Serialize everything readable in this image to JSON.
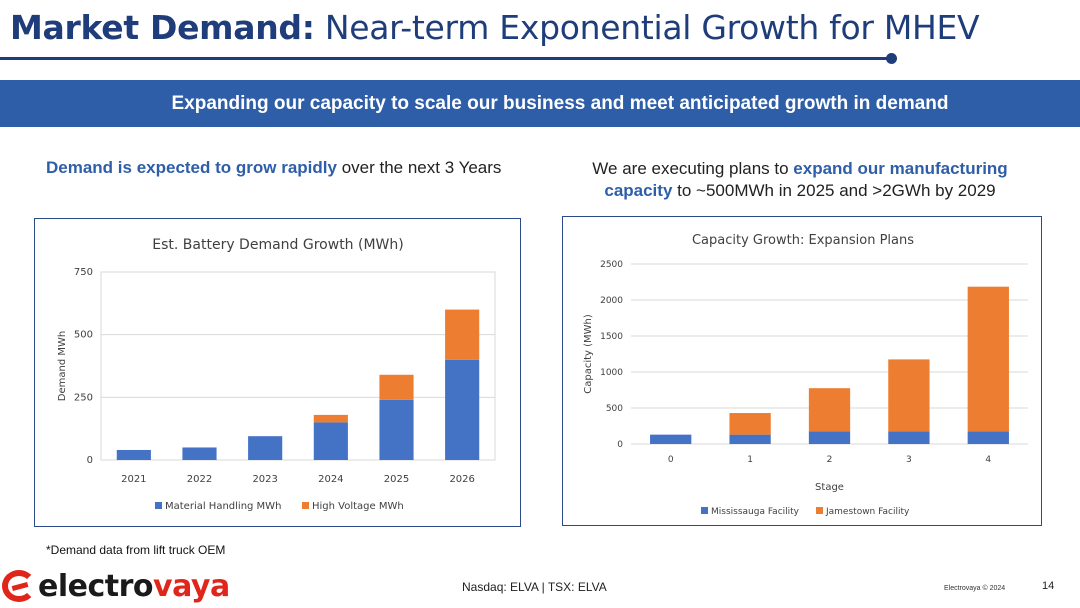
{
  "header": {
    "title_bold": "Market Demand:",
    "title_rest": "Near-term Exponential Growth for MHEV"
  },
  "banner": {
    "text": "Expanding our capacity to scale our business and meet anticipated growth in demand"
  },
  "left_subhead": {
    "highlight": "Demand is expected to grow rapidly",
    "rest": " over the next 3 Years"
  },
  "right_subhead": {
    "part1": "We are executing plans to ",
    "highlight": "expand our manufacturing capacity",
    "part2": " to ~500MWh in 2025 and >2GWh by 2029"
  },
  "chart_data": [
    {
      "type": "bar",
      "stacked": true,
      "title": "Est. Battery Demand Growth (MWh)",
      "xlabel": "",
      "ylabel": "Demand MWh",
      "categories": [
        "2021",
        "2022",
        "2023",
        "2024",
        "2025",
        "2026"
      ],
      "series": [
        {
          "name": "Material Handling MWh",
          "color": "#4472c4",
          "values": [
            40,
            50,
            95,
            150,
            240,
            400
          ]
        },
        {
          "name": "High Voltage MWh",
          "color": "#ed7d31",
          "values": [
            0,
            0,
            0,
            30,
            100,
            200
          ]
        }
      ],
      "ylim": [
        0,
        750
      ],
      "yticks": [
        0,
        250,
        500,
        750
      ],
      "grid": true,
      "legend": "bottom"
    },
    {
      "type": "bar",
      "stacked": true,
      "title": "Capacity Growth: Expansion Plans",
      "xlabel": "Stage",
      "ylabel": "Capacity (MWh)",
      "categories": [
        "0",
        "1",
        "2",
        "3",
        "4"
      ],
      "series": [
        {
          "name": "Mississauga Facility",
          "color": "#4472c4",
          "values": [
            130,
            130,
            175,
            175,
            175
          ]
        },
        {
          "name": "Jamestown Facility",
          "color": "#ed7d31",
          "values": [
            0,
            300,
            600,
            1000,
            2010
          ]
        }
      ],
      "ylim": [
        0,
        2500
      ],
      "yticks": [
        0,
        500,
        1000,
        1500,
        2000,
        2500
      ],
      "grid": true,
      "legend": "bottom"
    }
  ],
  "footnote": "*Demand data from lift truck OEM",
  "footer": {
    "logo_part1": "electro",
    "logo_part2": "vaya",
    "ticker": "Nasdaq: ELVA | TSX: ELVA",
    "copyright": "Electrovaya © 2024",
    "page_number": "14"
  }
}
